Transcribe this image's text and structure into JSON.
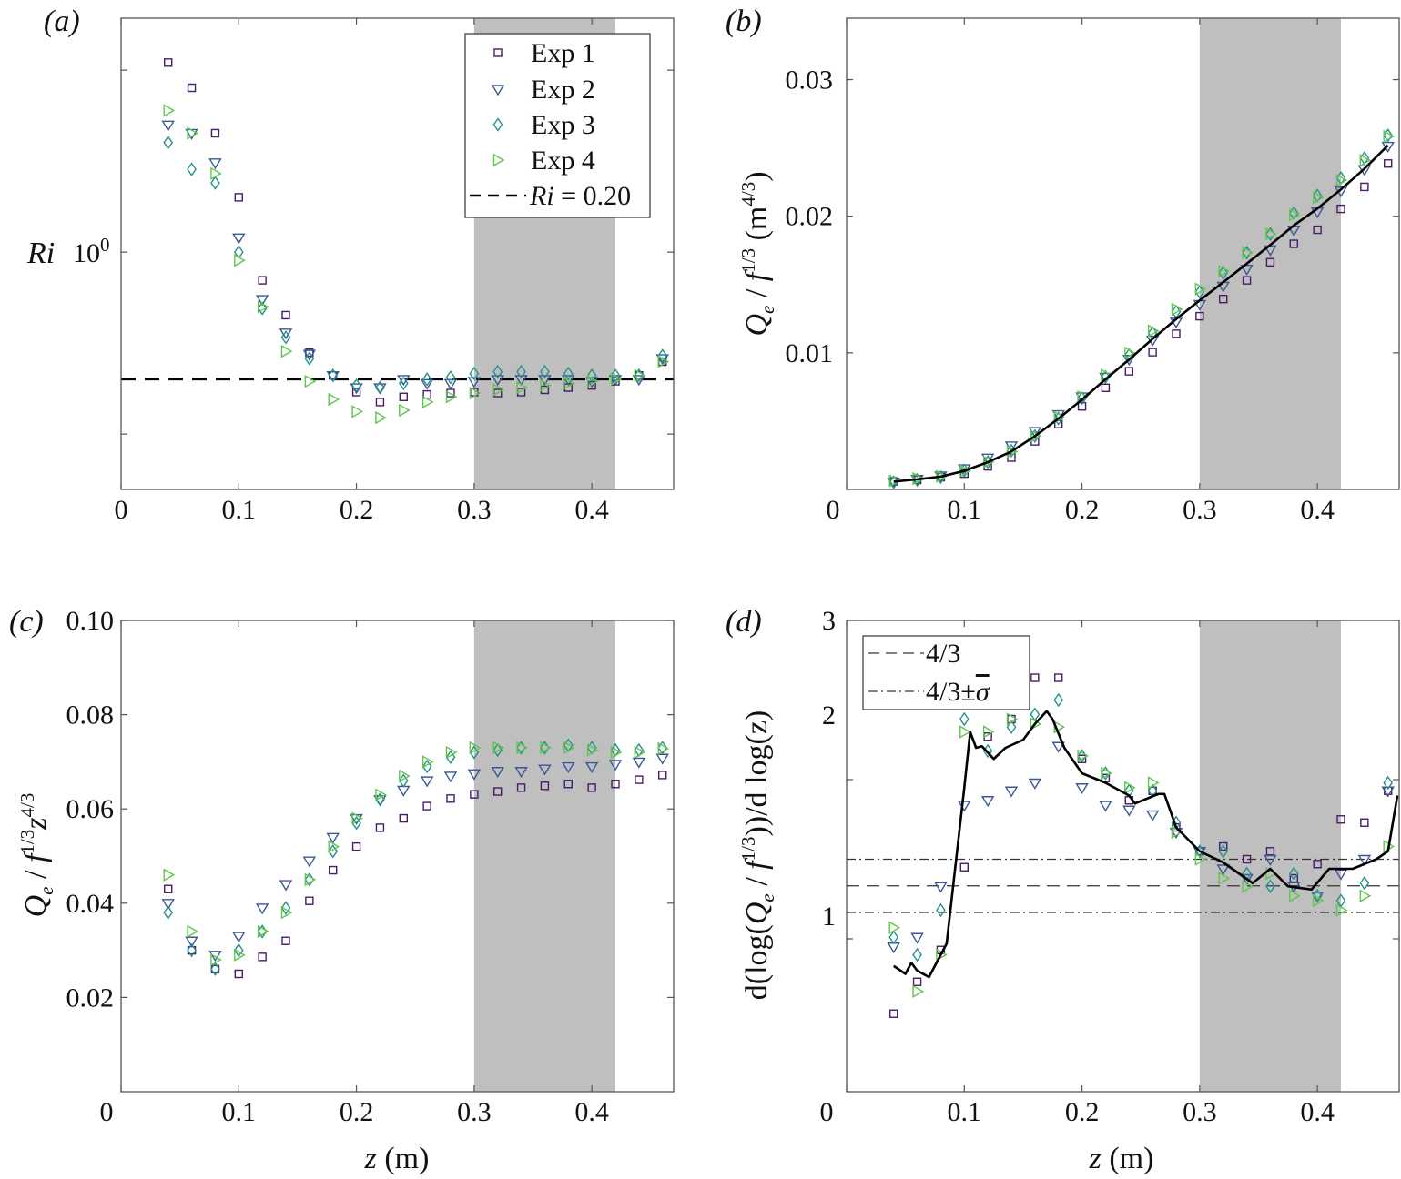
{
  "colors": {
    "exp1": "#4a1a6b",
    "exp2": "#3b5796",
    "exp3": "#23918c",
    "exp4": "#5ec74b",
    "shade": "#bfbfbf",
    "mean": "#000000"
  },
  "labels": {
    "a": {
      "letter": "(a)",
      "ylabel": "Ri",
      "ytick_base": "10",
      "ytick_exp": "0"
    },
    "b": {
      "letter": "(b)",
      "ylabel": {
        "q": "Q",
        "sub": "e",
        "mid": " / ",
        "f": "f",
        "sup": "1/3",
        "unit_open": " (m",
        "unit_sup": "4/3",
        "unit_close": ")"
      }
    },
    "c": {
      "letter": "(c)",
      "ylabel": {
        "q": "Q",
        "sub": "e",
        "mid": " / ",
        "f": "f",
        "sup": "1/3",
        "z": "z",
        "zsup": "4/3"
      },
      "xlabel": {
        "z": "z",
        "unit": " (m)"
      }
    },
    "d": {
      "letter": "(d)",
      "ylabel": {
        "pre": "d(log(",
        "q": "Q",
        "sub": "e",
        "mid": " / ",
        "f": "f",
        "sup": "1/3",
        "post": "))/d log(",
        "z": "z",
        "close": ")"
      },
      "xlabel": {
        "z": "z",
        "unit": " (m)"
      }
    }
  },
  "legend_a": {
    "entries": [
      "Exp 1",
      "Exp 2",
      "Exp 3",
      "Exp 4"
    ],
    "ri_symbol": "Ri",
    "ri_value": " = 0.20"
  },
  "legend_d": {
    "dashed": "4/3",
    "dashdot_base": "4/3",
    "dashdot_pm": "±",
    "dashdot_sigma": "σ"
  },
  "chart_data": [
    {
      "panel": "a",
      "type": "scatter",
      "yscale": "log",
      "xlim": [
        0,
        0.4695
      ],
      "ylim": [
        0.0496,
        19.3
      ],
      "xticks": [
        0,
        0.1,
        0.2,
        0.3,
        0.4
      ],
      "xticklabels": [
        "0",
        "0.1",
        "0.2",
        "0.3",
        "0.4"
      ],
      "yticks": [
        0.1,
        1,
        10
      ],
      "yticklabels": [
        "",
        "",
        ""
      ],
      "shaded_region": [
        0.3,
        0.42
      ],
      "hlines": [
        {
          "y": 0.2,
          "style": "dashed"
        }
      ],
      "x": [
        0.04,
        0.06,
        0.08,
        0.1,
        0.12,
        0.14,
        0.16,
        0.18,
        0.2,
        0.22,
        0.24,
        0.26,
        0.28,
        0.3,
        0.32,
        0.34,
        0.36,
        0.38,
        0.4,
        0.42,
        0.44,
        0.46
      ],
      "series": [
        {
          "name": "Exp 1",
          "marker": "square",
          "color_key": "exp1",
          "values": [
            11,
            8,
            4.5,
            2.0,
            0.7,
            0.45,
            0.28,
            0.21,
            0.17,
            0.15,
            0.16,
            0.165,
            0.168,
            0.17,
            0.168,
            0.17,
            0.175,
            0.18,
            0.185,
            0.195,
            0.21,
            0.25
          ]
        },
        {
          "name": "Exp 2",
          "marker": "triangle-down",
          "color_key": "exp2",
          "values": [
            5,
            4.5,
            3.1,
            1.2,
            0.55,
            0.36,
            0.275,
            0.21,
            0.18,
            0.18,
            0.2,
            0.19,
            0.19,
            0.195,
            0.2,
            0.2,
            0.2,
            0.2,
            0.195,
            0.2,
            0.2,
            0.26
          ]
        },
        {
          "name": "Exp 3",
          "marker": "diamond",
          "color_key": "exp3",
          "values": [
            4,
            2.85,
            2.4,
            1.0,
            0.49,
            0.34,
            0.26,
            0.21,
            0.185,
            0.18,
            0.19,
            0.2,
            0.205,
            0.215,
            0.22,
            0.22,
            0.22,
            0.215,
            0.21,
            0.21,
            0.21,
            0.27
          ]
        },
        {
          "name": "Exp 4",
          "marker": "triangle-right",
          "color_key": "exp4",
          "values": [
            6,
            4.5,
            2.7,
            0.9,
            0.5,
            0.285,
            0.195,
            0.155,
            0.133,
            0.123,
            0.135,
            0.15,
            0.16,
            0.168,
            0.175,
            0.18,
            0.185,
            0.19,
            0.195,
            0.2,
            0.21,
            0.25
          ]
        }
      ]
    },
    {
      "panel": "b",
      "type": "scatter",
      "yscale": "linear",
      "xlim": [
        0,
        0.4695
      ],
      "ylim": [
        0,
        0.0345
      ],
      "xticks": [
        0,
        0.1,
        0.2,
        0.3,
        0.4
      ],
      "xticklabels": [
        "0",
        "0.1",
        "0.2",
        "0.3",
        "0.4"
      ],
      "yticks": [
        0.01,
        0.02,
        0.03
      ],
      "yticklabels": [
        "0.01",
        "0.02",
        "0.03"
      ],
      "shaded_region": [
        0.3,
        0.42
      ],
      "x": [
        0.04,
        0.06,
        0.08,
        0.1,
        0.12,
        0.14,
        0.16,
        0.18,
        0.2,
        0.22,
        0.24,
        0.26,
        0.28,
        0.3,
        0.32,
        0.34,
        0.36,
        0.38,
        0.4,
        0.42,
        0.44,
        0.46
      ],
      "series": [
        {
          "name": "Exp 1",
          "marker": "square",
          "color_key": "exp1",
          "values": [
            0.00059,
            0.0007,
            0.0009,
            0.00116,
            0.00169,
            0.00233,
            0.00352,
            0.00478,
            0.00608,
            0.00744,
            0.00865,
            0.01005,
            0.0114,
            0.01268,
            0.01394,
            0.01531,
            0.01663,
            0.01798,
            0.01901,
            0.02054,
            0.02215,
            0.02386
          ]
        },
        {
          "name": "Exp 2",
          "marker": "triangle-down",
          "color_key": "exp2",
          "values": [
            0.00055,
            0.00075,
            0.001,
            0.00153,
            0.00231,
            0.0032,
            0.00426,
            0.00549,
            0.00679,
            0.00823,
            0.00954,
            0.01095,
            0.01227,
            0.01356,
            0.01489,
            0.01614,
            0.01755,
            0.019,
            0.02033,
            0.02186,
            0.02342,
            0.02514
          ]
        },
        {
          "name": "Exp 3",
          "marker": "diamond",
          "color_key": "exp3",
          "values": [
            0.00052,
            0.0007,
            0.0009,
            0.00139,
            0.00201,
            0.00284,
            0.00391,
            0.00519,
            0.00667,
            0.00823,
            0.00984,
            0.01145,
            0.01301,
            0.01446,
            0.01587,
            0.01733,
            0.0187,
            0.02023,
            0.02151,
            0.0228,
            0.02426,
            0.02592
          ]
        },
        {
          "name": "Exp 4",
          "marker": "triangle-right",
          "color_key": "exp4",
          "values": [
            0.00063,
            0.0008,
            0.00096,
            0.00135,
            0.00201,
            0.00276,
            0.00391,
            0.00529,
            0.00679,
            0.00837,
            0.00999,
            0.01161,
            0.01319,
            0.01467,
            0.01598,
            0.01733,
            0.0187,
            0.0201,
            0.02137,
            0.02264,
            0.02409,
            0.02585
          ]
        }
      ],
      "mean_line": {
        "x": [
          0.04,
          0.06,
          0.08,
          0.1,
          0.12,
          0.14,
          0.16,
          0.18,
          0.2,
          0.22,
          0.24,
          0.26,
          0.28,
          0.3,
          0.32,
          0.34,
          0.36,
          0.38,
          0.4,
          0.42,
          0.44,
          0.46
        ],
        "values": [
          0.00057,
          0.00074,
          0.00094,
          0.00136,
          0.002,
          0.00278,
          0.0039,
          0.00519,
          0.00658,
          0.00807,
          0.00951,
          0.01102,
          0.01247,
          0.01384,
          0.01517,
          0.01653,
          0.0179,
          0.01933,
          0.02056,
          0.02196,
          0.02348,
          0.02519
        ]
      }
    },
    {
      "panel": "c",
      "type": "scatter",
      "yscale": "linear",
      "xlim": [
        0,
        0.4695
      ],
      "ylim": [
        0,
        0.1
      ],
      "xticks": [
        0,
        0.1,
        0.2,
        0.3,
        0.4
      ],
      "xticklabels": [
        "0",
        "0.1",
        "0.2",
        "0.3",
        "0.4"
      ],
      "yticks": [
        0.02,
        0.04,
        0.06,
        0.08,
        0.1
      ],
      "yticklabels": [
        "0.02",
        "0.04",
        "0.06",
        "0.08",
        "0.10"
      ],
      "shaded_region": [
        0.3,
        0.42
      ],
      "x": [
        0.04,
        0.06,
        0.08,
        0.1,
        0.12,
        0.14,
        0.16,
        0.18,
        0.2,
        0.22,
        0.24,
        0.26,
        0.28,
        0.3,
        0.32,
        0.34,
        0.36,
        0.38,
        0.4,
        0.42,
        0.44,
        0.46
      ],
      "series": [
        {
          "name": "Exp 1",
          "marker": "square",
          "color_key": "exp1",
          "values": [
            0.043,
            0.03,
            0.026,
            0.025,
            0.0286,
            0.032,
            0.0405,
            0.047,
            0.052,
            0.056,
            0.058,
            0.0606,
            0.0622,
            0.0631,
            0.0637,
            0.0645,
            0.0649,
            0.0653,
            0.0645,
            0.0653,
            0.0662,
            0.0672
          ]
        },
        {
          "name": "Exp 2",
          "marker": "triangle-down",
          "color_key": "exp2",
          "values": [
            0.04,
            0.032,
            0.029,
            0.033,
            0.039,
            0.044,
            0.049,
            0.054,
            0.058,
            0.062,
            0.064,
            0.066,
            0.067,
            0.0675,
            0.068,
            0.068,
            0.0685,
            0.069,
            0.069,
            0.0695,
            0.07,
            0.0708
          ]
        },
        {
          "name": "Exp 3",
          "marker": "diamond",
          "color_key": "exp3",
          "values": [
            0.038,
            0.03,
            0.026,
            0.03,
            0.034,
            0.039,
            0.045,
            0.051,
            0.057,
            0.062,
            0.066,
            0.069,
            0.071,
            0.072,
            0.0725,
            0.073,
            0.073,
            0.0735,
            0.073,
            0.0725,
            0.0725,
            0.073
          ]
        },
        {
          "name": "Exp 4",
          "marker": "triangle-right",
          "color_key": "exp4",
          "values": [
            0.046,
            0.034,
            0.028,
            0.029,
            0.034,
            0.038,
            0.045,
            0.052,
            0.058,
            0.063,
            0.067,
            0.07,
            0.072,
            0.073,
            0.073,
            0.073,
            0.073,
            0.073,
            0.0725,
            0.072,
            0.072,
            0.0728
          ]
        }
      ]
    },
    {
      "panel": "d",
      "type": "scatter",
      "yscale": "linear",
      "xlim": [
        0,
        0.4695
      ],
      "ylim": [
        0.04,
        3
      ],
      "xticks": [
        0,
        0.1,
        0.2,
        0.3,
        0.4
      ],
      "xticklabels": [
        "0",
        "0.1",
        "0.2",
        "0.3",
        "0.4"
      ],
      "yticks": [
        1,
        2,
        3
      ],
      "yticklabels": [
        "1",
        "2",
        "3"
      ],
      "shaded_region": [
        0.3,
        0.42
      ],
      "hlines": [
        {
          "y": 1.333,
          "style": "dashed"
        },
        {
          "y": 1.5,
          "style": "dashdot"
        },
        {
          "y": 1.166,
          "style": "dashdot"
        }
      ],
      "x": [
        0.04,
        0.06,
        0.08,
        0.1,
        0.12,
        0.14,
        0.16,
        0.18,
        0.2,
        0.22,
        0.24,
        0.26,
        0.28,
        0.3,
        0.32,
        0.34,
        0.36,
        0.38,
        0.4,
        0.42,
        0.44,
        0.46
      ],
      "series": [
        {
          "name": "Exp 1",
          "marker": "square",
          "color_key": "exp1",
          "values": [
            0.53,
            0.73,
            0.93,
            1.45,
            2.27,
            2.38,
            2.64,
            2.64,
            2.13,
            2.01,
            1.87,
            1.93,
            1.7,
            1.55,
            1.58,
            1.5,
            1.55,
            1.38,
            1.47,
            1.75,
            1.73,
            1.93
          ]
        },
        {
          "name": "Exp 2",
          "marker": "triangle-down",
          "color_key": "exp2",
          "values": [
            0.95,
            1.01,
            1.33,
            1.84,
            1.87,
            1.93,
            1.98,
            2.21,
            1.95,
            1.84,
            1.81,
            1.78,
            1.67,
            1.55,
            1.44,
            1.38,
            1.5,
            1.33,
            1.27,
            1.41,
            1.5,
            1.93
          ]
        },
        {
          "name": "Exp 3",
          "marker": "diamond",
          "color_key": "exp3",
          "values": [
            1.01,
            0.9,
            1.18,
            2.38,
            2.18,
            2.33,
            2.41,
            2.5,
            2.15,
            2.04,
            1.93,
            1.93,
            1.73,
            1.55,
            1.55,
            1.41,
            1.33,
            1.41,
            1.27,
            1.24,
            1.35,
            1.98
          ]
        },
        {
          "name": "Exp 4",
          "marker": "triangle-right",
          "color_key": "exp4",
          "values": [
            1.07,
            0.67,
            0.9,
            2.3,
            2.3,
            2.38,
            2.35,
            2.33,
            2.15,
            2.04,
            1.95,
            1.98,
            1.67,
            1.5,
            1.38,
            1.33,
            1.41,
            1.27,
            1.24,
            1.18,
            1.27,
            1.58
          ]
        }
      ],
      "mean_line": {
        "x": [
          0.04,
          0.05,
          0.055,
          0.06,
          0.07,
          0.08,
          0.085,
          0.1,
          0.105,
          0.11,
          0.115,
          0.125,
          0.135,
          0.15,
          0.16,
          0.17,
          0.175,
          0.185,
          0.2,
          0.22,
          0.24,
          0.245,
          0.265,
          0.27,
          0.28,
          0.3,
          0.32,
          0.345,
          0.36,
          0.375,
          0.395,
          0.41,
          0.43,
          0.45,
          0.46,
          0.468
        ],
        "values": [
          0.83,
          0.78,
          0.85,
          0.8,
          0.76,
          0.9,
          0.97,
          1.95,
          2.3,
          2.2,
          2.21,
          2.13,
          2.2,
          2.25,
          2.35,
          2.43,
          2.38,
          2.2,
          2.04,
          1.98,
          1.9,
          1.85,
          1.91,
          1.91,
          1.7,
          1.55,
          1.48,
          1.35,
          1.44,
          1.33,
          1.31,
          1.44,
          1.44,
          1.5,
          1.55,
          1.9
        ]
      }
    }
  ]
}
